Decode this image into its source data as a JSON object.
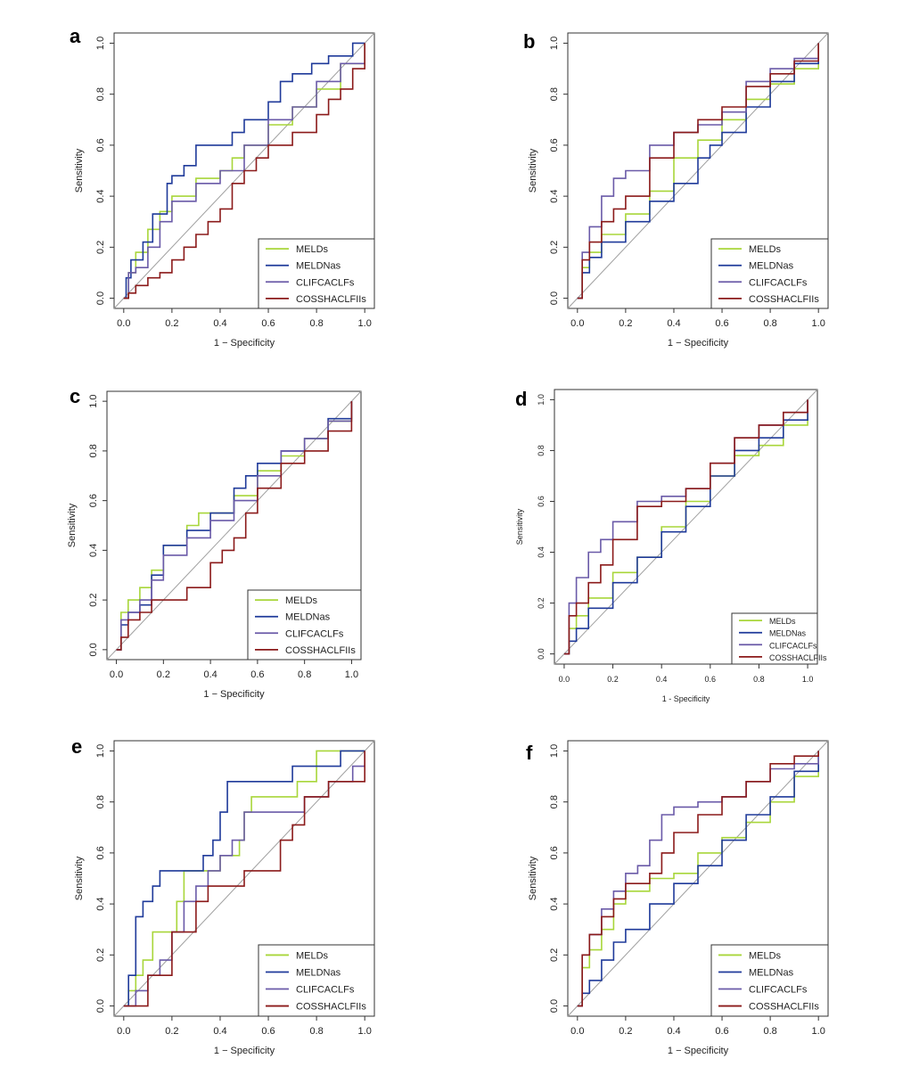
{
  "figure": {
    "colors": {
      "MELDs": "#a8d63a",
      "MELDNas": "#1f3a9a",
      "CLIFCACLFs": "#6a5aa8",
      "COSSHACLFIIs": "#8b1a1a",
      "diagonal": "#a0a0a0"
    }
  },
  "chart_data": [
    {
      "type": "line",
      "panel": "a",
      "xlabel": "1 − Specificity",
      "ylabel": "Sensitivity",
      "xlim": [
        0,
        1
      ],
      "ylim": [
        0,
        1
      ],
      "xticks": [
        "0.0",
        "0.2",
        "0.4",
        "0.6",
        "0.8",
        "1.0"
      ],
      "yticks": [
        "0.0",
        "0.2",
        "0.4",
        "0.6",
        "0.8",
        "1.0"
      ],
      "legend": [
        "MELDs",
        "MELDNas",
        "CLIFCACLFs",
        "COSSHACLFIIs"
      ],
      "series": [
        {
          "name": "MELDs",
          "x": [
            0,
            0.02,
            0.05,
            0.1,
            0.15,
            0.2,
            0.3,
            0.4,
            0.45,
            0.5,
            0.6,
            0.7,
            0.8,
            0.9,
            1.0
          ],
          "y": [
            0,
            0.1,
            0.18,
            0.27,
            0.34,
            0.4,
            0.47,
            0.5,
            0.55,
            0.6,
            0.68,
            0.75,
            0.82,
            0.92,
            1.0
          ]
        },
        {
          "name": "MELDNas",
          "x": [
            0,
            0.01,
            0.03,
            0.08,
            0.12,
            0.18,
            0.2,
            0.25,
            0.3,
            0.38,
            0.45,
            0.5,
            0.6,
            0.65,
            0.7,
            0.78,
            0.85,
            0.9,
            0.95,
            1.0
          ],
          "y": [
            0,
            0.08,
            0.15,
            0.22,
            0.33,
            0.45,
            0.48,
            0.52,
            0.6,
            0.6,
            0.65,
            0.7,
            0.77,
            0.85,
            0.88,
            0.92,
            0.95,
            0.95,
            1.0,
            1.0
          ]
        },
        {
          "name": "CLIFCACLFs",
          "x": [
            0,
            0.02,
            0.05,
            0.1,
            0.15,
            0.2,
            0.3,
            0.4,
            0.5,
            0.6,
            0.7,
            0.8,
            0.9,
            1.0
          ],
          "y": [
            0,
            0.1,
            0.12,
            0.2,
            0.3,
            0.38,
            0.45,
            0.5,
            0.6,
            0.7,
            0.75,
            0.85,
            0.92,
            1.0
          ]
        },
        {
          "name": "COSSHACLFIIs",
          "x": [
            0,
            0.02,
            0.05,
            0.1,
            0.15,
            0.2,
            0.25,
            0.3,
            0.35,
            0.4,
            0.45,
            0.5,
            0.55,
            0.6,
            0.7,
            0.8,
            0.85,
            0.9,
            0.95,
            1.0
          ],
          "y": [
            0,
            0.02,
            0.05,
            0.08,
            0.1,
            0.15,
            0.2,
            0.25,
            0.3,
            0.35,
            0.45,
            0.5,
            0.55,
            0.6,
            0.65,
            0.72,
            0.78,
            0.82,
            0.9,
            1.0
          ]
        }
      ]
    },
    {
      "type": "line",
      "panel": "b",
      "xlabel": "1 − Specificity",
      "ylabel": "Sensitivity",
      "xlim": [
        0,
        1
      ],
      "ylim": [
        0,
        1
      ],
      "xticks": [
        "0.0",
        "0.2",
        "0.4",
        "0.6",
        "0.8",
        "1.0"
      ],
      "yticks": [
        "0.0",
        "0.2",
        "0.4",
        "0.6",
        "0.8",
        "1.0"
      ],
      "legend": [
        "MELDs",
        "MELDNas",
        "CLIFCACLFs",
        "COSSHACLFIIs"
      ],
      "series": [
        {
          "name": "MELDs",
          "x": [
            0,
            0.02,
            0.05,
            0.1,
            0.2,
            0.3,
            0.4,
            0.5,
            0.6,
            0.7,
            0.8,
            0.9,
            1.0
          ],
          "y": [
            0,
            0.12,
            0.18,
            0.25,
            0.33,
            0.42,
            0.55,
            0.62,
            0.7,
            0.78,
            0.84,
            0.9,
            1.0
          ]
        },
        {
          "name": "MELDNas",
          "x": [
            0,
            0.02,
            0.05,
            0.1,
            0.2,
            0.3,
            0.4,
            0.5,
            0.55,
            0.6,
            0.7,
            0.8,
            0.9,
            1.0
          ],
          "y": [
            0,
            0.1,
            0.16,
            0.22,
            0.3,
            0.38,
            0.45,
            0.55,
            0.6,
            0.65,
            0.75,
            0.85,
            0.92,
            1.0
          ]
        },
        {
          "name": "CLIFCACLFs",
          "x": [
            0,
            0.02,
            0.05,
            0.1,
            0.15,
            0.2,
            0.3,
            0.4,
            0.5,
            0.6,
            0.7,
            0.8,
            0.9,
            1.0
          ],
          "y": [
            0,
            0.18,
            0.28,
            0.4,
            0.47,
            0.5,
            0.6,
            0.65,
            0.68,
            0.73,
            0.85,
            0.9,
            0.94,
            1.0
          ]
        },
        {
          "name": "COSSHACLFIIs",
          "x": [
            0,
            0.02,
            0.05,
            0.1,
            0.15,
            0.2,
            0.3,
            0.4,
            0.5,
            0.6,
            0.7,
            0.8,
            0.9,
            1.0
          ],
          "y": [
            0,
            0.15,
            0.22,
            0.3,
            0.35,
            0.4,
            0.55,
            0.65,
            0.7,
            0.75,
            0.83,
            0.88,
            0.93,
            1.0
          ]
        }
      ]
    },
    {
      "type": "line",
      "panel": "c",
      "xlabel": "1 − Specificity",
      "ylabel": "Sensitivity",
      "xlim": [
        0,
        1
      ],
      "ylim": [
        0,
        1
      ],
      "xticks": [
        "0.0",
        "0.2",
        "0.4",
        "0.6",
        "0.8",
        "1.0"
      ],
      "yticks": [
        "0.0",
        "0.2",
        "0.4",
        "0.6",
        "0.8",
        "1.0"
      ],
      "legend": [
        "MELDs",
        "MELDNas",
        "CLIFCACLFs",
        "COSSHACLFIIs"
      ],
      "series": [
        {
          "name": "MELDs",
          "x": [
            0,
            0.02,
            0.05,
            0.1,
            0.15,
            0.2,
            0.3,
            0.35,
            0.4,
            0.5,
            0.6,
            0.7,
            0.8,
            0.9,
            1.0
          ],
          "y": [
            0,
            0.15,
            0.2,
            0.25,
            0.32,
            0.42,
            0.5,
            0.55,
            0.55,
            0.62,
            0.72,
            0.78,
            0.85,
            0.92,
            1.0
          ]
        },
        {
          "name": "MELDNas",
          "x": [
            0,
            0.02,
            0.05,
            0.1,
            0.15,
            0.2,
            0.3,
            0.4,
            0.5,
            0.55,
            0.6,
            0.7,
            0.8,
            0.9,
            1.0
          ],
          "y": [
            0,
            0.1,
            0.15,
            0.18,
            0.3,
            0.42,
            0.48,
            0.55,
            0.65,
            0.7,
            0.75,
            0.8,
            0.85,
            0.93,
            1.0
          ]
        },
        {
          "name": "CLIFCACLFs",
          "x": [
            0,
            0.02,
            0.05,
            0.1,
            0.15,
            0.2,
            0.3,
            0.4,
            0.5,
            0.6,
            0.7,
            0.8,
            0.9,
            1.0
          ],
          "y": [
            0,
            0.12,
            0.15,
            0.2,
            0.28,
            0.38,
            0.45,
            0.52,
            0.6,
            0.7,
            0.8,
            0.85,
            0.92,
            1.0
          ]
        },
        {
          "name": "COSSHACLFIIs",
          "x": [
            0,
            0.02,
            0.05,
            0.1,
            0.15,
            0.2,
            0.3,
            0.4,
            0.45,
            0.5,
            0.55,
            0.6,
            0.7,
            0.8,
            0.9,
            1.0
          ],
          "y": [
            0,
            0.05,
            0.12,
            0.15,
            0.2,
            0.2,
            0.25,
            0.35,
            0.4,
            0.45,
            0.55,
            0.65,
            0.75,
            0.8,
            0.88,
            1.0
          ]
        }
      ]
    },
    {
      "type": "line",
      "panel": "d",
      "xlabel": "1 - Specificity",
      "ylabel": "Sensitivity",
      "xlim": [
        0,
        1
      ],
      "ylim": [
        0,
        1
      ],
      "xticks": [
        "0.0",
        "0.2",
        "0.4",
        "0.6",
        "0.8",
        "1.0"
      ],
      "yticks": [
        "0.0",
        "0.2",
        "0.4",
        "0.6",
        "0.8",
        "1.0"
      ],
      "legend": [
        "MELDs",
        "MELDNas",
        "CLIFCACLFs",
        "COSSHACLFIIs"
      ],
      "series": [
        {
          "name": "MELDs",
          "x": [
            0,
            0.02,
            0.05,
            0.1,
            0.2,
            0.3,
            0.4,
            0.5,
            0.6,
            0.7,
            0.8,
            0.9,
            1.0
          ],
          "y": [
            0,
            0.1,
            0.15,
            0.22,
            0.32,
            0.38,
            0.5,
            0.6,
            0.7,
            0.78,
            0.82,
            0.9,
            1.0
          ]
        },
        {
          "name": "MELDNas",
          "x": [
            0,
            0.02,
            0.05,
            0.1,
            0.2,
            0.3,
            0.4,
            0.5,
            0.6,
            0.7,
            0.8,
            0.9,
            1.0
          ],
          "y": [
            0,
            0.05,
            0.1,
            0.18,
            0.28,
            0.38,
            0.48,
            0.58,
            0.7,
            0.8,
            0.85,
            0.92,
            1.0
          ]
        },
        {
          "name": "CLIFCACLFs",
          "x": [
            0,
            0.02,
            0.05,
            0.1,
            0.15,
            0.2,
            0.3,
            0.4,
            0.5,
            0.6,
            0.7,
            0.8,
            0.9,
            1.0
          ],
          "y": [
            0,
            0.2,
            0.3,
            0.4,
            0.45,
            0.52,
            0.6,
            0.62,
            0.65,
            0.75,
            0.85,
            0.9,
            0.95,
            1.0
          ]
        },
        {
          "name": "COSSHACLFIIs",
          "x": [
            0,
            0.02,
            0.05,
            0.1,
            0.15,
            0.2,
            0.3,
            0.4,
            0.5,
            0.6,
            0.7,
            0.8,
            0.9,
            1.0
          ],
          "y": [
            0,
            0.15,
            0.2,
            0.28,
            0.35,
            0.45,
            0.58,
            0.6,
            0.65,
            0.75,
            0.85,
            0.9,
            0.95,
            1.0
          ]
        }
      ]
    },
    {
      "type": "line",
      "panel": "e",
      "xlabel": "1 − Specificity",
      "ylabel": "Sensitivity",
      "xlim": [
        0,
        1
      ],
      "ylim": [
        0,
        1
      ],
      "xticks": [
        "0.0",
        "0.2",
        "0.4",
        "0.6",
        "0.8",
        "1.0"
      ],
      "yticks": [
        "0.0",
        "0.2",
        "0.4",
        "0.6",
        "0.8",
        "1.0"
      ],
      "legend": [
        "MELDs",
        "MELDNas",
        "CLIFCACLFs",
        "COSSHACLFIIs"
      ],
      "series": [
        {
          "name": "MELDs",
          "x": [
            0,
            0.02,
            0.05,
            0.08,
            0.12,
            0.18,
            0.22,
            0.25,
            0.3,
            0.35,
            0.4,
            0.48,
            0.5,
            0.53,
            0.6,
            0.65,
            0.72,
            0.75,
            0.8,
            0.85,
            0.9,
            1.0
          ],
          "y": [
            0,
            0.06,
            0.12,
            0.18,
            0.29,
            0.29,
            0.41,
            0.53,
            0.53,
            0.53,
            0.59,
            0.65,
            0.76,
            0.82,
            0.82,
            0.82,
            0.88,
            0.88,
            1.0,
            1.0,
            1.0,
            1.0
          ]
        },
        {
          "name": "MELDNas",
          "x": [
            0,
            0.02,
            0.05,
            0.08,
            0.12,
            0.15,
            0.2,
            0.25,
            0.3,
            0.33,
            0.37,
            0.4,
            0.43,
            0.5,
            0.6,
            0.65,
            0.7,
            0.75,
            0.8,
            0.9,
            0.95,
            1.0
          ],
          "y": [
            0,
            0.12,
            0.35,
            0.41,
            0.47,
            0.53,
            0.53,
            0.53,
            0.53,
            0.59,
            0.65,
            0.76,
            0.88,
            0.88,
            0.88,
            0.88,
            0.94,
            0.94,
            0.94,
            1.0,
            1.0,
            1.0
          ]
        },
        {
          "name": "CLIFCACLFs",
          "x": [
            0,
            0.05,
            0.1,
            0.15,
            0.2,
            0.25,
            0.3,
            0.35,
            0.4,
            0.45,
            0.5,
            0.55,
            0.6,
            0.65,
            0.7,
            0.75,
            0.8,
            0.85,
            0.9,
            0.95,
            1.0
          ],
          "y": [
            0,
            0.06,
            0.12,
            0.18,
            0.29,
            0.41,
            0.47,
            0.53,
            0.59,
            0.65,
            0.76,
            0.76,
            0.76,
            0.76,
            0.76,
            0.82,
            0.82,
            0.88,
            0.88,
            0.94,
            1.0
          ]
        },
        {
          "name": "COSSHACLFIIs",
          "x": [
            0,
            0.05,
            0.1,
            0.15,
            0.2,
            0.25,
            0.3,
            0.35,
            0.4,
            0.45,
            0.5,
            0.55,
            0.6,
            0.65,
            0.7,
            0.75,
            0.8,
            0.85,
            0.9,
            0.95,
            1.0
          ],
          "y": [
            0,
            0,
            0.12,
            0.12,
            0.29,
            0.29,
            0.41,
            0.47,
            0.47,
            0.47,
            0.53,
            0.53,
            0.53,
            0.65,
            0.71,
            0.82,
            0.82,
            0.88,
            0.88,
            0.88,
            1.0
          ]
        }
      ]
    },
    {
      "type": "line",
      "panel": "f",
      "xlabel": "1 − Specificity",
      "ylabel": "Sensitivity",
      "xlim": [
        0,
        1
      ],
      "ylim": [
        0,
        1
      ],
      "xticks": [
        "0.0",
        "0.2",
        "0.4",
        "0.6",
        "0.8",
        "1.0"
      ],
      "yticks": [
        "0.0",
        "0.2",
        "0.4",
        "0.6",
        "0.8",
        "1.0"
      ],
      "legend": [
        "MELDs",
        "MELDNas",
        "CLIFCACLFs",
        "COSSHACLFIIs"
      ],
      "series": [
        {
          "name": "MELDs",
          "x": [
            0,
            0.02,
            0.05,
            0.1,
            0.15,
            0.2,
            0.3,
            0.4,
            0.5,
            0.6,
            0.7,
            0.8,
            0.9,
            1.0
          ],
          "y": [
            0,
            0.15,
            0.22,
            0.3,
            0.4,
            0.45,
            0.5,
            0.52,
            0.6,
            0.66,
            0.72,
            0.8,
            0.9,
            1.0
          ]
        },
        {
          "name": "MELDNas",
          "x": [
            0,
            0.02,
            0.05,
            0.1,
            0.15,
            0.2,
            0.3,
            0.4,
            0.5,
            0.6,
            0.7,
            0.8,
            0.9,
            1.0
          ],
          "y": [
            0,
            0.05,
            0.1,
            0.18,
            0.25,
            0.3,
            0.4,
            0.48,
            0.55,
            0.65,
            0.75,
            0.82,
            0.92,
            1.0
          ]
        },
        {
          "name": "CLIFCACLFs",
          "x": [
            0,
            0.02,
            0.05,
            0.1,
            0.15,
            0.2,
            0.25,
            0.3,
            0.35,
            0.4,
            0.5,
            0.6,
            0.7,
            0.8,
            0.9,
            1.0
          ],
          "y": [
            0,
            0.2,
            0.28,
            0.38,
            0.45,
            0.52,
            0.55,
            0.65,
            0.75,
            0.78,
            0.8,
            0.82,
            0.88,
            0.93,
            0.95,
            1.0
          ]
        },
        {
          "name": "COSSHACLFIIs",
          "x": [
            0,
            0.02,
            0.05,
            0.1,
            0.15,
            0.2,
            0.3,
            0.35,
            0.4,
            0.5,
            0.6,
            0.7,
            0.8,
            0.9,
            1.0
          ],
          "y": [
            0,
            0.2,
            0.28,
            0.35,
            0.42,
            0.48,
            0.52,
            0.6,
            0.68,
            0.75,
            0.82,
            0.88,
            0.95,
            0.98,
            1.0
          ]
        }
      ]
    }
  ]
}
